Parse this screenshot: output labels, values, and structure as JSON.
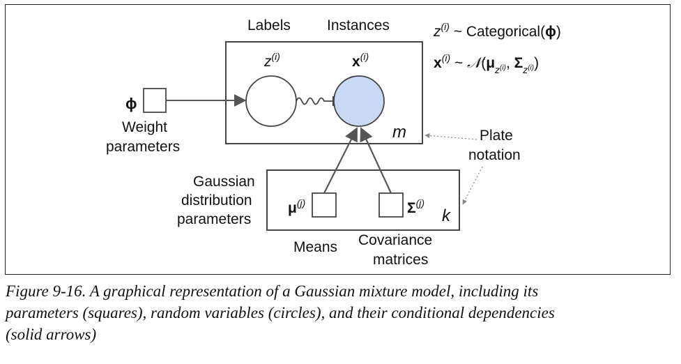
{
  "diagram": {
    "labels_header": "Labels",
    "instances_header": "Instances",
    "z_node": {
      "main": "z",
      "sup": "(i)"
    },
    "x_node": {
      "main": "x",
      "sup": "(i)"
    },
    "plate_m": "m",
    "plate_k": "k",
    "phi_symbol": "ϕ",
    "weight_label": [
      "Weight",
      "parameters"
    ],
    "plate_notation": [
      "Plate",
      "notation"
    ],
    "gaussian_label": [
      "Gaussian",
      "distribution",
      "parameters"
    ],
    "mu_node": {
      "main": "μ",
      "sup": "(j)"
    },
    "sigma_node": {
      "main": "Σ",
      "sup": "(j)"
    },
    "means_label": "Means",
    "covariance_label": [
      "Covariance",
      "matrices"
    ],
    "eq1": {
      "z": "z",
      "sup": "(i)",
      "rest": " ~ Categorical(",
      "phi": "ϕ",
      "close": ")"
    },
    "eq2": {
      "x": "x",
      "sup": "(i)",
      "tilde": " ~ ",
      "N": "𝒩",
      "open": "(",
      "mu": "μ",
      "sub1": "z",
      "sub1sup": "(i)",
      "comma": ", ",
      "sigma": "Σ",
      "sub2": "z",
      "sub2sup": "(i)",
      "close": ")"
    },
    "colors": {
      "instance_fill": "#c9d9f5",
      "stroke": "#444444",
      "dotted": "#888888"
    }
  },
  "caption": [
    "Figure 9-16. A graphical representation of a Gaussian mixture model, including its",
    "parameters (squares), random variables (circles), and their conditional dependencies",
    "(solid arrows)"
  ]
}
